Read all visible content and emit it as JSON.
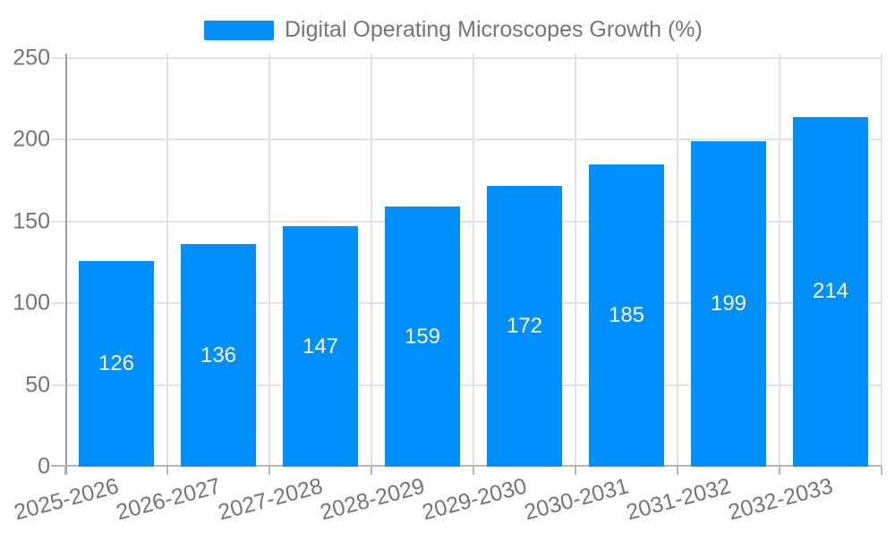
{
  "legend": {
    "label": "Digital Operating Microscopes Growth (%)"
  },
  "colors": {
    "bar": "#008FFB",
    "grid": "#e2e2e2",
    "y_axis_line": "#9e9e9e",
    "x_axis_line": "#b6b6b6",
    "tick": "#b6b6b6",
    "axis_label": "#757575",
    "value_label": "#ffffff",
    "background": "#ffffff"
  },
  "chart_data": {
    "type": "bar",
    "title": "",
    "xlabel": "",
    "ylabel": "",
    "categories": [
      "2025-2026",
      "2026-2027",
      "2027-2028",
      "2028-2029",
      "2029-2030",
      "2030-2031",
      "2031-2032",
      "2032-2033"
    ],
    "series": [
      {
        "name": "Digital Operating Microscopes Growth (%)",
        "values": [
          126,
          136,
          147,
          159,
          172,
          185,
          199,
          214
        ]
      }
    ],
    "ylim": [
      0,
      250
    ],
    "yticks": [
      0,
      50,
      100,
      150,
      200,
      250
    ],
    "grid": true,
    "legend_position": "top",
    "bar_label_position": "center-inside",
    "bar_label_color": "#ffffff",
    "x_label_rotation": -15
  }
}
